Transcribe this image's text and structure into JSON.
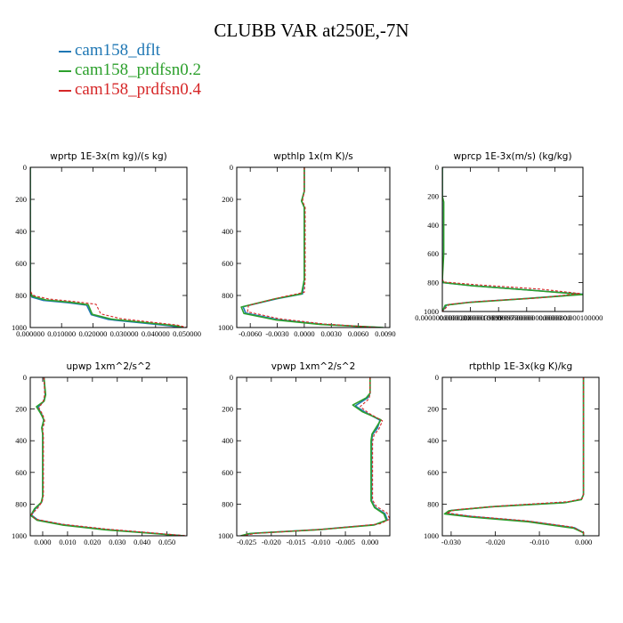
{
  "figure_title": "CLUBB VAR at250E,-7N",
  "legend": [
    {
      "label": "cam158_dflt",
      "color": "#1f77b4"
    },
    {
      "label": "cam158_prdfsn0.2",
      "color": "#2ca02c"
    },
    {
      "label": "cam158_prdfsn0.4",
      "color": "#d62728"
    }
  ],
  "chart_data": [
    {
      "type": "line",
      "title": "wprtp  1E-3x(m kg)/(s kg)",
      "xlim": [
        0,
        0.05
      ],
      "ylim": [
        1000,
        0
      ],
      "xticks": [
        0,
        0.01,
        0.02,
        0.03,
        0.04,
        0.05
      ],
      "xtick_labels": [
        "0.000000",
        "0.010000",
        "0.020000",
        "0.030000",
        "0.040000",
        "0.050000"
      ],
      "yticks": [
        0,
        200,
        400,
        600,
        800,
        1000
      ],
      "series": [
        {
          "name": "cam158_dflt",
          "style": "solid",
          "x": [
            0,
            0,
            0.0005,
            0.004,
            0.012,
            0.018,
            0.0195,
            0.025,
            0.035,
            0.045,
            0.048
          ],
          "y": [
            0,
            780,
            810,
            830,
            845,
            860,
            920,
            950,
            970,
            990,
            1000
          ]
        },
        {
          "name": "cam158_prdfsn0.2",
          "style": "solid",
          "x": [
            0,
            0,
            0.0005,
            0.005,
            0.013,
            0.0185,
            0.0198,
            0.026,
            0.036,
            0.046,
            0.049
          ],
          "y": [
            0,
            775,
            805,
            828,
            843,
            858,
            918,
            948,
            968,
            988,
            1000
          ]
        },
        {
          "name": "cam158_prdfsn0.4",
          "style": "dashed",
          "x": [
            0,
            0,
            0.0008,
            0.006,
            0.015,
            0.021,
            0.0225,
            0.029,
            0.038,
            0.047,
            0.05
          ],
          "y": [
            0,
            770,
            800,
            822,
            840,
            855,
            915,
            945,
            965,
            985,
            1000
          ]
        }
      ]
    },
    {
      "type": "line",
      "title": "wpthlp  1x(m K)/s",
      "xlim": [
        -0.0075,
        0.0095
      ],
      "ylim": [
        1000,
        0
      ],
      "xticks": [
        -0.006,
        -0.003,
        0,
        0.003,
        0.006,
        0.009
      ],
      "xtick_labels": [
        "-0.0060",
        "-0.0030",
        "0.0000",
        "0.0030",
        "0.0060",
        "0.0090"
      ],
      "yticks": [
        0,
        200,
        400,
        600,
        800,
        1000
      ],
      "series": [
        {
          "name": "cam158_dflt",
          "style": "solid",
          "x": [
            0,
            0,
            -0.0003,
            0,
            0,
            -0.0002,
            -0.003,
            -0.0068,
            -0.0065,
            -0.003,
            0.002,
            0.0085
          ],
          "y": [
            0,
            150,
            210,
            250,
            700,
            790,
            820,
            870,
            910,
            950,
            980,
            1000
          ]
        },
        {
          "name": "cam158_prdfsn0.2",
          "style": "solid",
          "x": [
            0,
            0,
            -0.0003,
            0,
            0,
            -0.0003,
            -0.0032,
            -0.007,
            -0.0067,
            -0.0032,
            0.0018,
            0.0088
          ],
          "y": [
            0,
            150,
            210,
            250,
            700,
            790,
            820,
            872,
            912,
            952,
            981,
            1000
          ]
        },
        {
          "name": "cam158_prdfsn0.4",
          "style": "dashed",
          "x": [
            0,
            0,
            -0.0002,
            0.0001,
            0.0001,
            0,
            -0.0025,
            -0.0062,
            -0.0063,
            -0.0028,
            0.0022,
            0.0082
          ],
          "y": [
            0,
            150,
            210,
            250,
            700,
            780,
            810,
            862,
            902,
            945,
            978,
            1000
          ]
        }
      ]
    },
    {
      "type": "line",
      "title": "wprcp  1E-3x(m/s) (kg/kg)",
      "xlim": [
        0,
        0.0001
      ],
      "ylim": [
        1000,
        0
      ],
      "xticks": [
        0,
        2e-05,
        4e-05,
        6e-05,
        8e-05,
        0.0001
      ],
      "xtick_labels": [
        "0.0000000000000",
        "0.000020000010000",
        "0.00003999999700000",
        "0.00006000000000000",
        "0.0000800",
        "0.000100000"
      ],
      "yticks": [
        0,
        200,
        400,
        600,
        800,
        1000
      ],
      "series": [
        {
          "name": "cam158_dflt",
          "style": "solid",
          "x": [
            0,
            0,
            5e-07,
            2e-05,
            6e-05,
            0.0001,
            6e-05,
            2e-05,
            3e-06,
            0
          ],
          "y": [
            0,
            780,
            800,
            820,
            850,
            880,
            910,
            935,
            955,
            1000
          ]
        },
        {
          "name": "cam158_prdfsn0.2",
          "style": "solid",
          "x": [
            0,
            0,
            1e-06,
            1e-06,
            0,
            1e-06,
            2.2e-05,
            6.2e-05,
            0.0001,
            5.8e-05,
            1.8e-05,
            2e-06,
            0
          ],
          "y": [
            0,
            200,
            240,
            600,
            780,
            800,
            822,
            852,
            882,
            912,
            938,
            957,
            1000
          ]
        },
        {
          "name": "cam158_prdfsn0.4",
          "style": "dashed",
          "x": [
            0,
            0,
            8e-07,
            2.5e-05,
            7e-05,
            9.8e-05,
            7e-05,
            2.5e-05,
            5e-06,
            0
          ],
          "y": [
            0,
            775,
            795,
            815,
            845,
            875,
            905,
            930,
            950,
            1000
          ]
        }
      ]
    },
    {
      "type": "line",
      "title": "upwp  1xm^2/s^2",
      "xlim": [
        -0.005,
        0.058
      ],
      "ylim": [
        1000,
        0
      ],
      "xticks": [
        0,
        0.01,
        0.02,
        0.03,
        0.04,
        0.05
      ],
      "xtick_labels": [
        "0.000",
        "0.010",
        "0.020",
        "0.030",
        "0.040",
        "0.050"
      ],
      "yticks": [
        0,
        200,
        400,
        600,
        800,
        1000
      ],
      "series": [
        {
          "name": "cam158_dflt",
          "style": "solid",
          "x": [
            0.0005,
            0.001,
            0.0005,
            -0.002,
            -0.0005,
            0.0004,
            -0.0003,
            0,
            0,
            -0.0005,
            -0.003,
            -0.0045,
            -0.002,
            0.008,
            0.025,
            0.045,
            0.057
          ],
          "y": [
            0,
            110,
            150,
            190,
            230,
            270,
            320,
            360,
            750,
            790,
            830,
            870,
            900,
            930,
            960,
            985,
            1000
          ]
        },
        {
          "name": "cam158_prdfsn0.2",
          "style": "solid",
          "x": [
            0.0005,
            0.0012,
            0.0006,
            -0.0025,
            -0.0008,
            0.0005,
            -0.0004,
            0,
            0,
            -0.0006,
            -0.0033,
            -0.0048,
            -0.0022,
            0.0078,
            0.0248,
            0.0448,
            0.0568
          ],
          "y": [
            0,
            110,
            150,
            185,
            228,
            268,
            318,
            358,
            750,
            790,
            830,
            872,
            902,
            932,
            962,
            986,
            1000
          ]
        },
        {
          "name": "cam158_prdfsn0.4",
          "style": "dashed",
          "x": [
            0.0005,
            0.0008,
            0.0002,
            -0.0015,
            0,
            0.0008,
            0,
            0.0003,
            0.0003,
            -0.0002,
            -0.002,
            -0.0045,
            -0.003,
            0.0085,
            0.026,
            0.046,
            0.058
          ],
          "y": [
            0,
            110,
            150,
            195,
            235,
            275,
            325,
            365,
            745,
            785,
            825,
            865,
            895,
            928,
            958,
            984,
            1000
          ]
        }
      ]
    },
    {
      "type": "line",
      "title": "vpwp  1xm^2/s^2",
      "xlim": [
        -0.027,
        0.004
      ],
      "ylim": [
        1000,
        0
      ],
      "xticks": [
        -0.025,
        -0.02,
        -0.015,
        -0.01,
        -0.005,
        0
      ],
      "xtick_labels": [
        "-0.025",
        "-0.020",
        "-0.015",
        "-0.010",
        "-0.005",
        "0.000"
      ],
      "yticks": [
        0,
        200,
        400,
        600,
        800,
        1000
      ],
      "series": [
        {
          "name": "cam158_dflt",
          "style": "solid",
          "x": [
            0,
            0,
            -0.0005,
            -0.003,
            -0.001,
            0.002,
            0.0015,
            0.0005,
            0.0003,
            0.0003,
            0.001,
            0.003,
            0.0035,
            0.001,
            -0.01,
            -0.024,
            -0.026
          ],
          "y": [
            0,
            100,
            130,
            180,
            220,
            270,
            320,
            360,
            400,
            780,
            820,
            860,
            900,
            930,
            960,
            985,
            1000
          ]
        },
        {
          "name": "cam158_prdfsn0.2",
          "style": "solid",
          "x": [
            0,
            0,
            -0.0008,
            -0.0035,
            -0.0015,
            0.0022,
            0.0012,
            0.0004,
            0.0002,
            0.0002,
            0.0009,
            0.0028,
            0.0033,
            0.0008,
            -0.0105,
            -0.0245,
            -0.0262
          ],
          "y": [
            0,
            100,
            130,
            175,
            218,
            268,
            318,
            358,
            400,
            780,
            822,
            862,
            902,
            932,
            962,
            986,
            1000
          ]
        },
        {
          "name": "cam158_prdfsn0.4",
          "style": "dashed",
          "x": [
            0,
            0,
            -0.0002,
            -0.002,
            -0.0003,
            0.0025,
            0.0018,
            0.0008,
            0.0005,
            0.0005,
            0.0013,
            0.0034,
            0.004,
            0.002,
            -0.009,
            -0.023,
            -0.026
          ],
          "y": [
            0,
            100,
            135,
            185,
            225,
            275,
            325,
            365,
            405,
            775,
            815,
            855,
            895,
            925,
            958,
            984,
            1000
          ]
        }
      ]
    },
    {
      "type": "line",
      "title": "rtpthlp  1E-3x(kg K)/kg",
      "xlim": [
        -0.032,
        0.0035
      ],
      "ylim": [
        1000,
        0
      ],
      "xticks": [
        -0.03,
        -0.02,
        -0.01,
        0
      ],
      "xtick_labels": [
        "-0.030",
        "-0.020",
        "-0.010",
        "0.000"
      ],
      "yticks": [
        0,
        200,
        400,
        600,
        800,
        1000
      ],
      "series": [
        {
          "name": "cam158_dflt",
          "style": "solid",
          "x": [
            0,
            0,
            -0.0005,
            -0.004,
            -0.02,
            -0.03,
            -0.031,
            -0.025,
            -0.012,
            -0.002,
            0,
            0
          ],
          "y": [
            0,
            740,
            770,
            790,
            815,
            840,
            860,
            880,
            910,
            950,
            980,
            1000
          ]
        },
        {
          "name": "cam158_prdfsn0.2",
          "style": "solid",
          "x": [
            0,
            0,
            -0.0005,
            -0.0045,
            -0.021,
            -0.0305,
            -0.0315,
            -0.0255,
            -0.0125,
            -0.0022,
            0,
            0
          ],
          "y": [
            0,
            740,
            772,
            792,
            817,
            842,
            862,
            882,
            912,
            952,
            981,
            1000
          ]
        },
        {
          "name": "cam158_prdfsn0.4",
          "style": "dashed",
          "x": [
            0,
            0,
            -0.0003,
            -0.0035,
            -0.018,
            -0.029,
            -0.031,
            -0.026,
            -0.013,
            -0.0025,
            0,
            0
          ],
          "y": [
            0,
            735,
            765,
            785,
            810,
            835,
            855,
            875,
            905,
            945,
            978,
            1000
          ]
        }
      ]
    }
  ]
}
